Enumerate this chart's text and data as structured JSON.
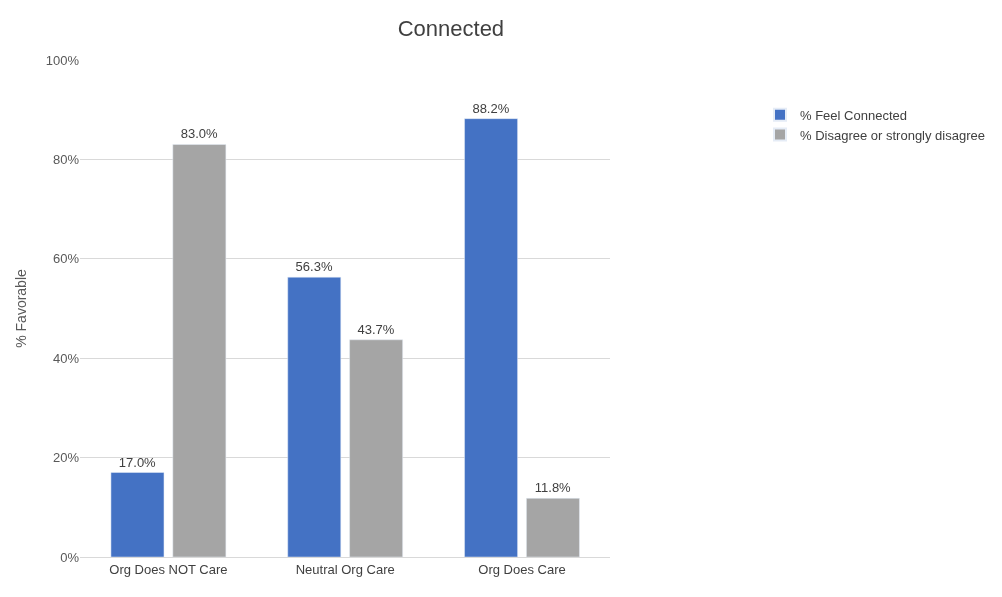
{
  "chart_data": {
    "type": "bar",
    "title": "Connected",
    "ylabel": "% Favorable",
    "categories": [
      "Org Does NOT Care",
      "Neutral Org Care",
      "Org Does Care"
    ],
    "series": [
      {
        "name": "% Feel Connected",
        "color": "#4472c4",
        "values": [
          17.0,
          56.3,
          88.2
        ],
        "value_labels": [
          "17.0%",
          "56.3%",
          "88.2%"
        ]
      },
      {
        "name": "% Disagree or strongly disagree",
        "color": "#a5a5a5",
        "values": [
          83.0,
          43.7,
          11.8
        ],
        "value_labels": [
          "83.0%",
          "43.7%",
          "11.8%"
        ]
      }
    ],
    "ylim": [
      0,
      100
    ],
    "yticks": [
      {
        "value": 0,
        "label": "0%"
      },
      {
        "value": 20,
        "label": "20%"
      },
      {
        "value": 40,
        "label": "40%"
      },
      {
        "value": 60,
        "label": "60%"
      },
      {
        "value": 80,
        "label": "80%"
      },
      {
        "value": 100,
        "label": "100%"
      }
    ],
    "grid": "y",
    "legend": "right"
  }
}
